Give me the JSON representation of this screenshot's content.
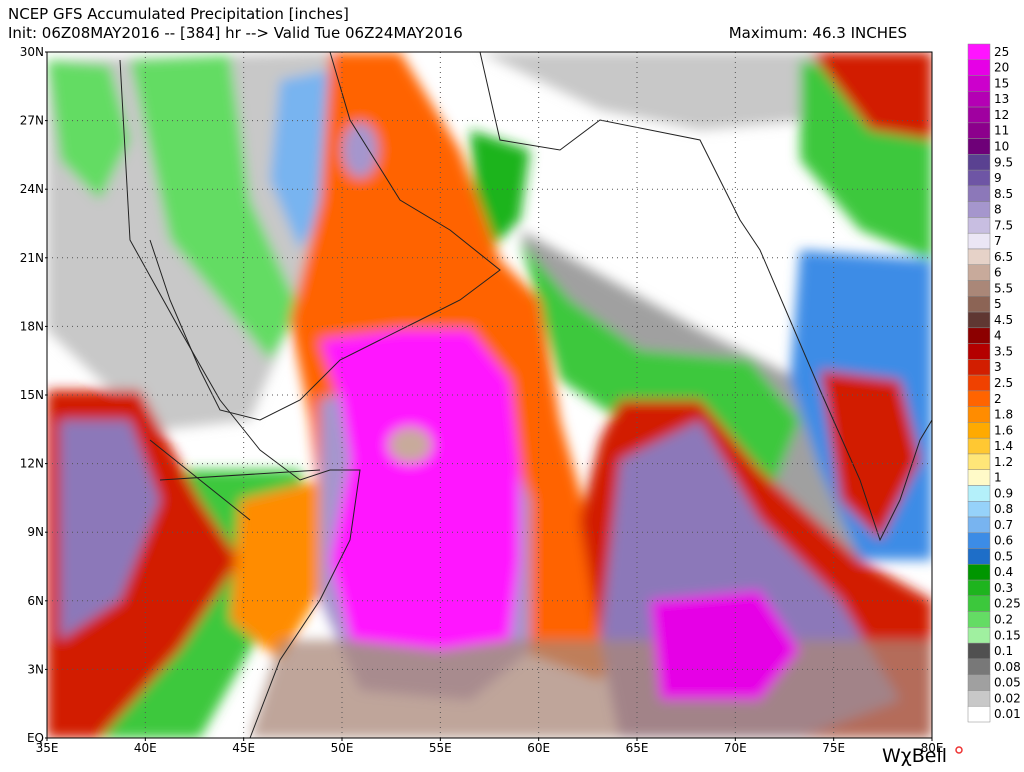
{
  "header": {
    "title": "NCEP GFS Accumulated Precipitation [inches]",
    "init": "Init: 06Z08MAY2016 -- [384] hr --> Valid Tue 06Z24MAY2016",
    "maximum": "Maximum: 46.3 INCHES"
  },
  "map": {
    "lat_labels": [
      "30N",
      "27N",
      "24N",
      "21N",
      "18N",
      "15N",
      "12N",
      "9N",
      "6N",
      "3N",
      "EQ"
    ],
    "lon_labels": [
      "35E",
      "40E",
      "45E",
      "50E",
      "55E",
      "60E",
      "65E",
      "70E",
      "75E",
      "80E"
    ],
    "grid": true
  },
  "colorbar": {
    "levels": [
      {
        "label": "25",
        "color": "#ff14ff"
      },
      {
        "label": "20",
        "color": "#e600e6"
      },
      {
        "label": "15",
        "color": "#cc00cc"
      },
      {
        "label": "13",
        "color": "#b400b4"
      },
      {
        "label": "12",
        "color": "#a000a0"
      },
      {
        "label": "11",
        "color": "#8c008c"
      },
      {
        "label": "10",
        "color": "#6e0078"
      },
      {
        "label": "9.5",
        "color": "#5a4191"
      },
      {
        "label": "9",
        "color": "#6e55a5"
      },
      {
        "label": "8.5",
        "color": "#8c78b9"
      },
      {
        "label": "8",
        "color": "#a596cd"
      },
      {
        "label": "7.5",
        "color": "#c8bee1"
      },
      {
        "label": "7",
        "color": "#ebe6f5"
      },
      {
        "label": "6.5",
        "color": "#e6d2c8"
      },
      {
        "label": "6",
        "color": "#c8aa9b"
      },
      {
        "label": "5.5",
        "color": "#aa8778"
      },
      {
        "label": "5",
        "color": "#8c6455"
      },
      {
        "label": "4.5",
        "color": "#5f3732"
      },
      {
        "label": "4",
        "color": "#8c0000"
      },
      {
        "label": "3.5",
        "color": "#b40000"
      },
      {
        "label": "3",
        "color": "#d21e00"
      },
      {
        "label": "2.5",
        "color": "#f04100"
      },
      {
        "label": "2",
        "color": "#ff6400"
      },
      {
        "label": "1.8",
        "color": "#ff8c00"
      },
      {
        "label": "1.6",
        "color": "#ffaa00"
      },
      {
        "label": "1.4",
        "color": "#ffc832"
      },
      {
        "label": "1.2",
        "color": "#ffe678"
      },
      {
        "label": "1",
        "color": "#fffac8"
      },
      {
        "label": "0.9",
        "color": "#b4f0fa"
      },
      {
        "label": "0.8",
        "color": "#96d2fa"
      },
      {
        "label": "0.7",
        "color": "#78b4f0"
      },
      {
        "label": "0.6",
        "color": "#3c8ce6"
      },
      {
        "label": "0.5",
        "color": "#1e6ec8"
      },
      {
        "label": "0.4",
        "color": "#009600"
      },
      {
        "label": "0.3",
        "color": "#1eb41e"
      },
      {
        "label": "0.25",
        "color": "#3cc83c"
      },
      {
        "label": "0.2",
        "color": "#64dc64"
      },
      {
        "label": "0.15",
        "color": "#a0f0a0"
      },
      {
        "label": "0.1",
        "color": "#505050"
      },
      {
        "label": "0.08",
        "color": "#787878"
      },
      {
        "label": "0.05",
        "color": "#a0a0a0"
      },
      {
        "label": "0.02",
        "color": "#c8c8c8"
      },
      {
        "label": "0.01",
        "color": "#ffffff"
      }
    ]
  },
  "watermark": "WχBell"
}
